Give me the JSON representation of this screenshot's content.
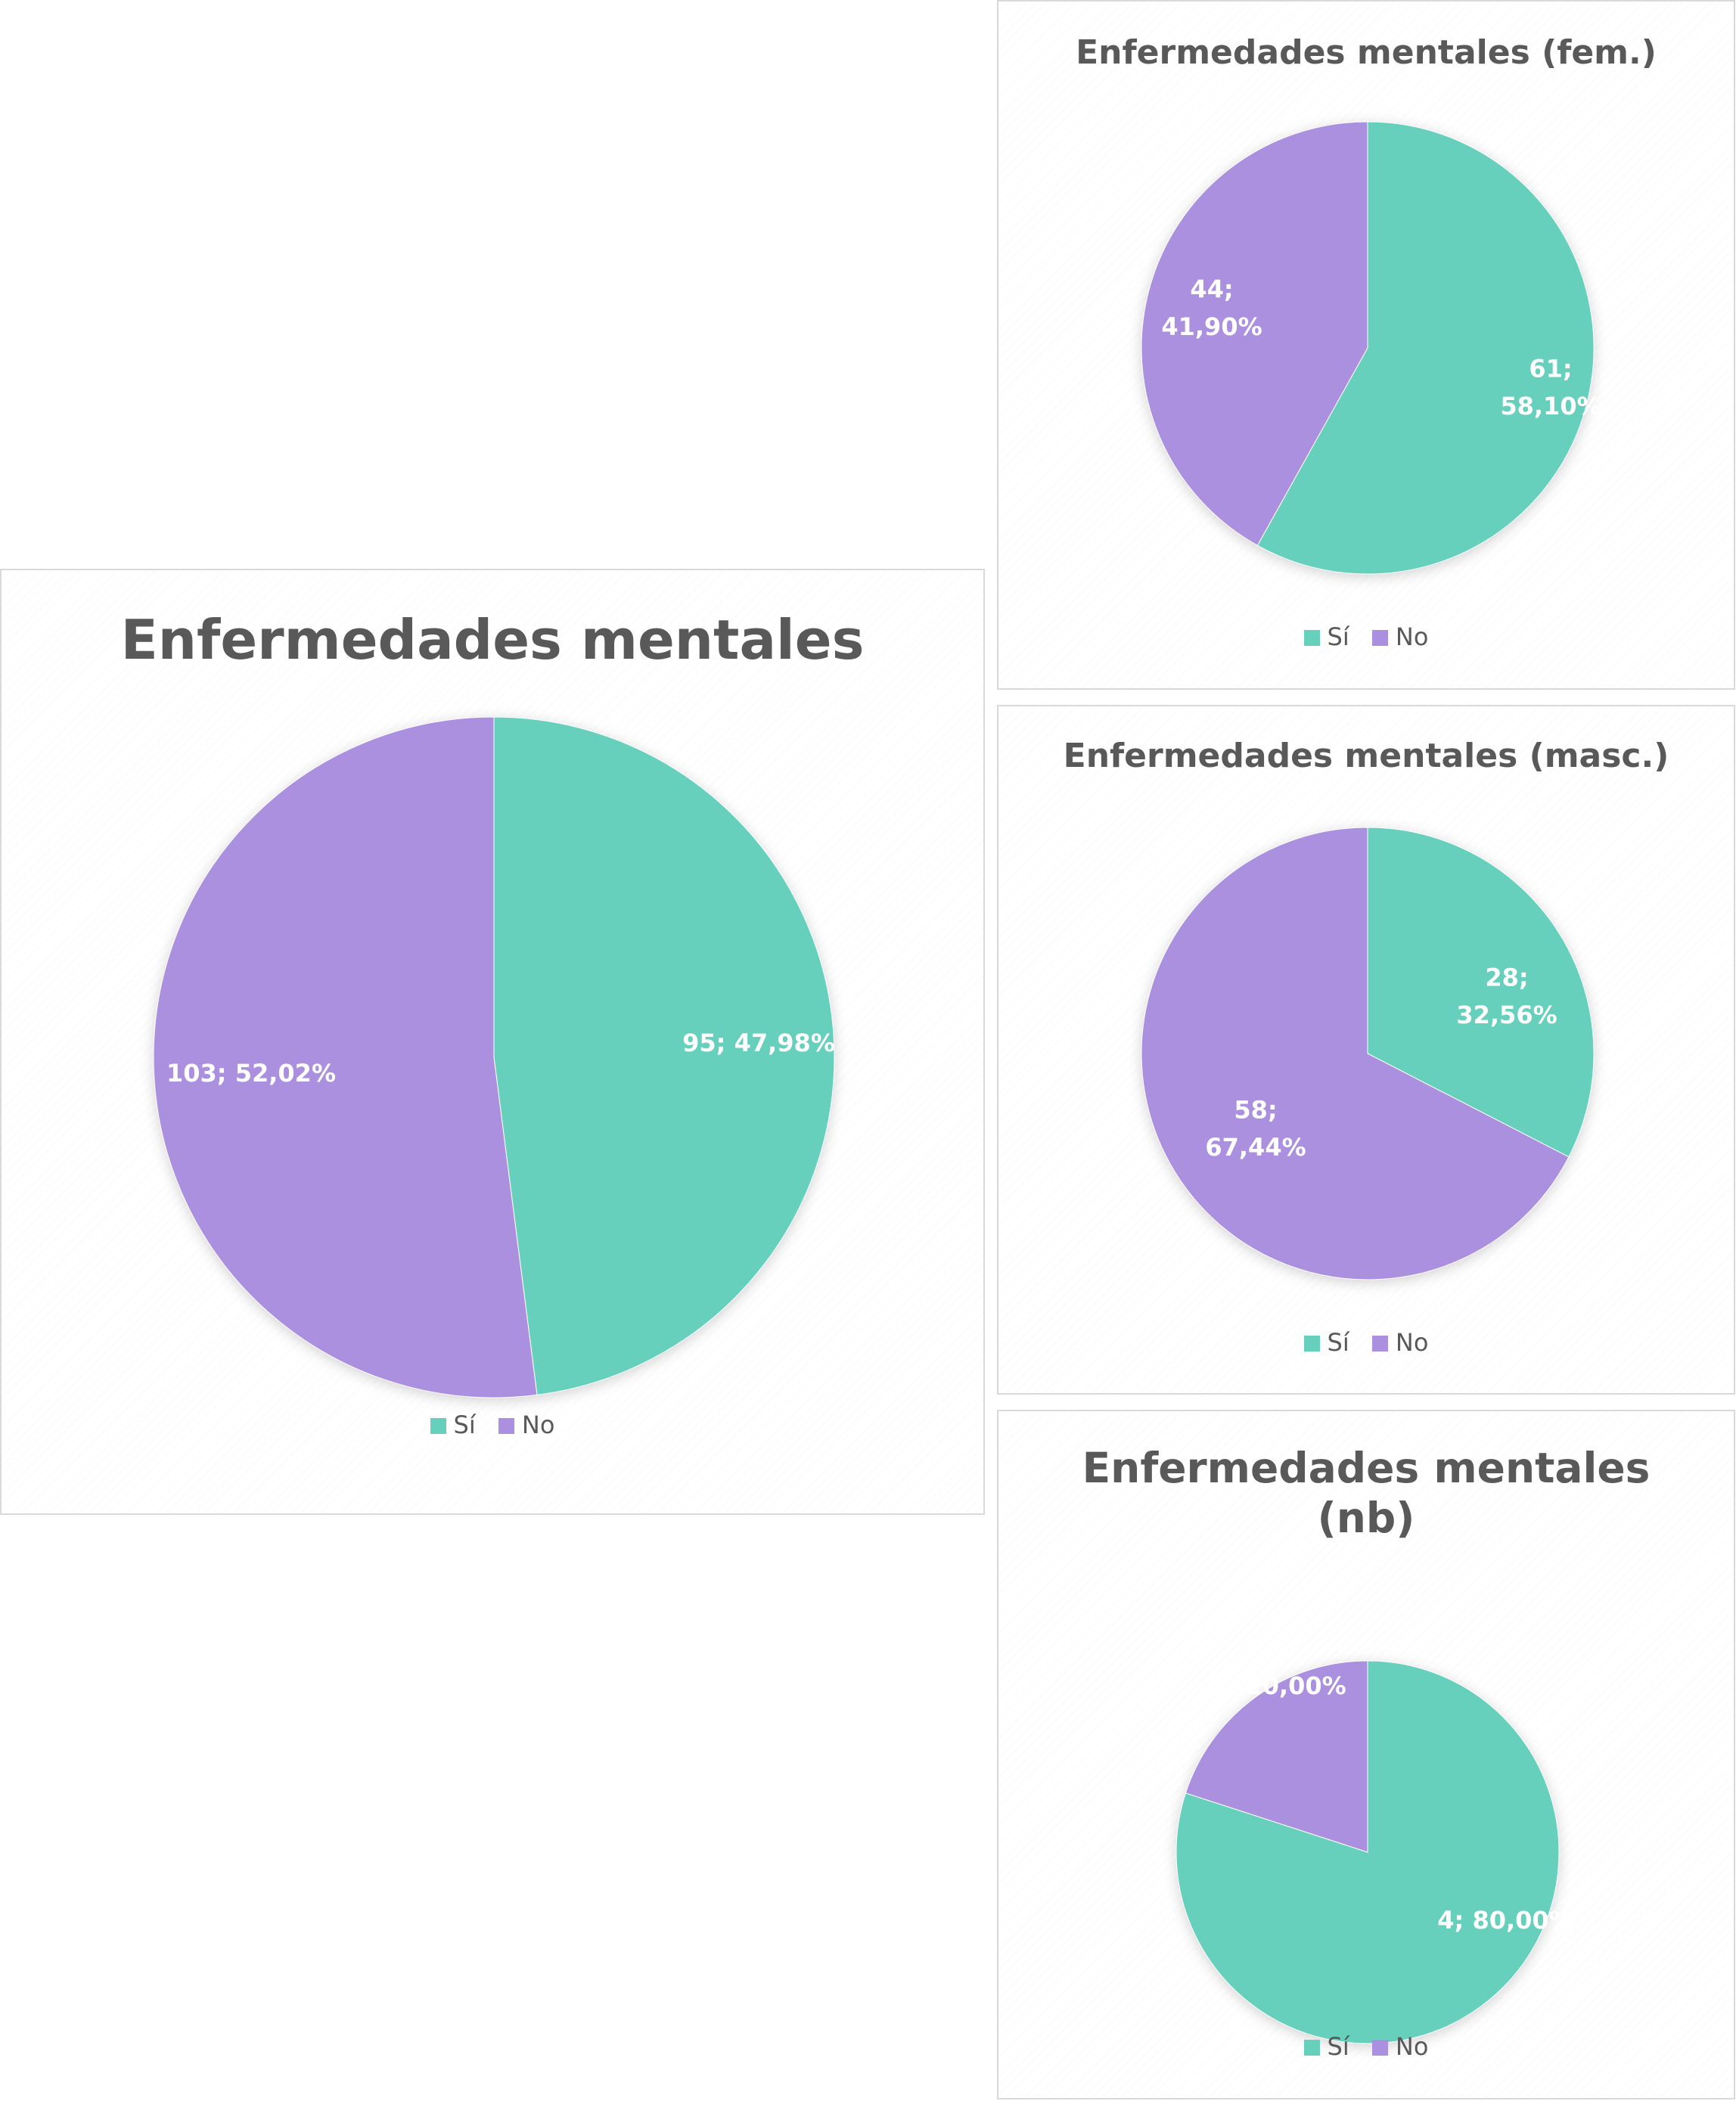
{
  "colors": {
    "si": "#66d0bc",
    "no": "#ab90e0"
  },
  "chart_data": [
    {
      "type": "pie",
      "title": "Enfermedades mentales",
      "categories": [
        "Sí",
        "No"
      ],
      "values": [
        95,
        103
      ],
      "labels": [
        "95; 47,98%",
        "103; 52,02%"
      ],
      "legend": "bottom"
    },
    {
      "type": "pie",
      "title": "Enfermedades mentales (fem.)",
      "categories": [
        "Sí",
        "No"
      ],
      "values": [
        61,
        44
      ],
      "labels": [
        "61;\n58,10%",
        "44;\n41,90%"
      ],
      "legend": "bottom"
    },
    {
      "type": "pie",
      "title": "Enfermedades mentales (masc.)",
      "categories": [
        "Sí",
        "No"
      ],
      "values": [
        28,
        58
      ],
      "labels": [
        "28;\n32,56%",
        "58;\n67,44%"
      ],
      "legend": "bottom"
    },
    {
      "type": "pie",
      "title": "Enfermedades mentales\n(nb)",
      "categories": [
        "Sí",
        "No"
      ],
      "values": [
        4,
        1
      ],
      "labels": [
        "4; 80,00%",
        "1; 20,00%"
      ],
      "legend": "bottom"
    }
  ]
}
